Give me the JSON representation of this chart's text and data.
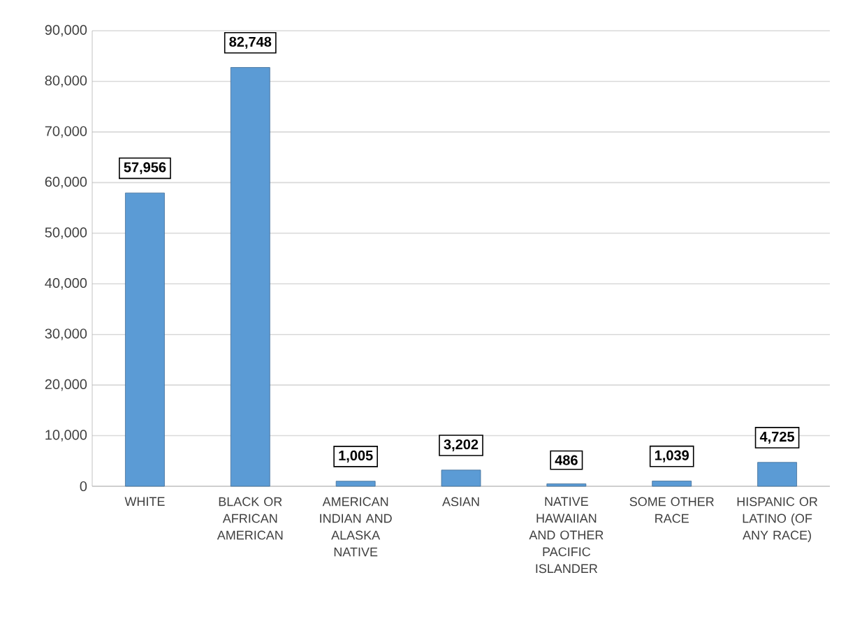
{
  "chart_data": {
    "type": "bar",
    "categories": [
      "WHITE",
      "BLACK OR AFRICAN AMERICAN",
      "AMERICAN INDIAN AND ALASKA NATIVE",
      "ASIAN",
      "NATIVE HAWAIIAN AND OTHER PACIFIC ISLANDER",
      "SOME OTHER RACE",
      "HISPANIC OR LATINO (OF ANY RACE)"
    ],
    "values": [
      57956,
      82748,
      1005,
      3202,
      486,
      1039,
      4725
    ],
    "value_labels": [
      "57,956",
      "82,748",
      "1,005",
      "3,202",
      "486",
      "1,039",
      "4,725"
    ],
    "color": "#5b9bd5",
    "ylim": [
      0,
      90000
    ],
    "yticks": [
      0,
      {
        "value": 10000,
        "label": "10,000"
      },
      {
        "value": 20000,
        "label": "20,000"
      },
      {
        "value": 30000,
        "label": "30,000"
      },
      {
        "value": 40000,
        "label": "40,000"
      },
      {
        "value": 50000,
        "label": "50,000"
      },
      {
        "value": 60000,
        "label": "60,000"
      },
      {
        "value": 70000,
        "label": "70,000"
      },
      {
        "value": 80000,
        "label": "80,000"
      },
      {
        "value": 90000,
        "label": "90,000"
      }
    ],
    "grid": true
  }
}
